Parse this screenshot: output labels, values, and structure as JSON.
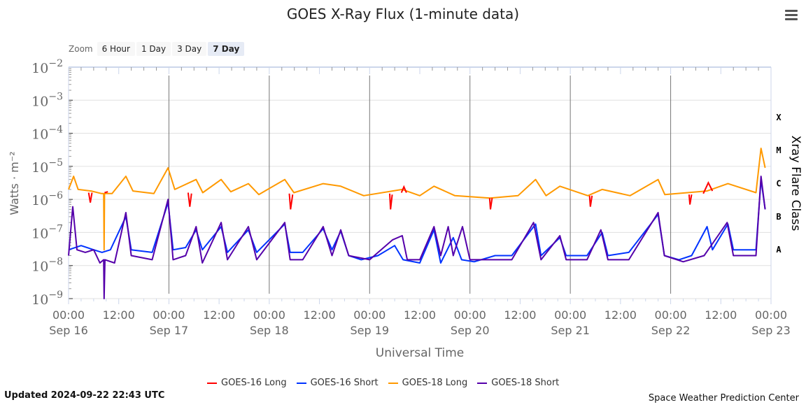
{
  "chart_data": {
    "type": "line",
    "title": "GOES X-Ray Flux (1-minute data)",
    "xlabel": "Universal Time",
    "ylabel": "Watts · m⁻²",
    "y2label": "Xray Flare Class",
    "yscale": "log",
    "ylim": [
      1e-09,
      0.01
    ],
    "xlim_hours": [
      0,
      168
    ],
    "y_ticks": [
      {
        "base": "10",
        "exp": "−2"
      },
      {
        "base": "10",
        "exp": "−3"
      },
      {
        "base": "10",
        "exp": "−4"
      },
      {
        "base": "10",
        "exp": "−5"
      },
      {
        "base": "10",
        "exp": "−6"
      },
      {
        "base": "10",
        "exp": "−7"
      },
      {
        "base": "10",
        "exp": "−8"
      },
      {
        "base": "10",
        "exp": "−9"
      }
    ],
    "flare_classes": [
      {
        "label": "X",
        "value": 0.000316
      },
      {
        "label": "M",
        "value": 3.16e-05
      },
      {
        "label": "C",
        "value": 3.16e-06
      },
      {
        "label": "B",
        "value": 3.16e-07
      },
      {
        "label": "A",
        "value": 3.16e-08
      }
    ],
    "x_ticks": [
      {
        "h": 0,
        "time": "00:00",
        "date": "Sep 16"
      },
      {
        "h": 12,
        "time": "12:00",
        "date": ""
      },
      {
        "h": 24,
        "time": "00:00",
        "date": "Sep 17"
      },
      {
        "h": 36,
        "time": "12:00",
        "date": ""
      },
      {
        "h": 48,
        "time": "00:00",
        "date": "Sep 18"
      },
      {
        "h": 60,
        "time": "12:00",
        "date": ""
      },
      {
        "h": 72,
        "time": "00:00",
        "date": "Sep 19"
      },
      {
        "h": 84,
        "time": "12:00",
        "date": ""
      },
      {
        "h": 96,
        "time": "00:00",
        "date": "Sep 20"
      },
      {
        "h": 108,
        "time": "12:00",
        "date": ""
      },
      {
        "h": 120,
        "time": "00:00",
        "date": "Sep 21"
      },
      {
        "h": 132,
        "time": "12:00",
        "date": ""
      },
      {
        "h": 144,
        "time": "00:00",
        "date": "Sep 22"
      },
      {
        "h": 156,
        "time": "12:00",
        "date": ""
      },
      {
        "h": 168,
        "time": "00:00",
        "date": "Sep 23"
      }
    ],
    "series": [
      {
        "name": "GOES-16 Long",
        "color": "#ff0000",
        "segments": [
          [
            [
              4.8,
              1.6e-06
            ],
            [
              5.2,
              8e-07
            ],
            [
              5.6,
              1.6e-06
            ]
          ],
          [
            [
              8.6,
              1.6e-06
            ],
            [
              9.4,
              1.7e-06
            ]
          ],
          [
            [
              28.6,
              1.6e-06
            ],
            [
              29.0,
              6e-07
            ],
            [
              29.4,
              1.5e-06
            ]
          ],
          [
            [
              52.8,
              1.5e-06
            ],
            [
              53.1,
              5e-07
            ],
            [
              53.6,
              1.4e-06
            ]
          ],
          [
            [
              76.8,
              1.5e-06
            ],
            [
              77.0,
              5e-07
            ],
            [
              77.4,
              1.4e-06
            ]
          ],
          [
            [
              79.6,
              1.6e-06
            ],
            [
              80.2,
              2.4e-06
            ],
            [
              80.8,
              1.6e-06
            ]
          ],
          [
            [
              100.7,
              1.1e-06
            ],
            [
              100.9,
              5e-07
            ],
            [
              101.3,
              1.1e-06
            ]
          ],
          [
            [
              124.6,
              1.3e-06
            ],
            [
              124.8,
              6e-07
            ],
            [
              125.2,
              1.3e-06
            ]
          ],
          [
            [
              148.4,
              1.4e-06
            ],
            [
              148.6,
              7e-07
            ],
            [
              149.0,
              1.4e-06
            ]
          ],
          [
            [
              151.8,
              1.5e-06
            ],
            [
              153.0,
              3.2e-06
            ],
            [
              154.0,
              1.8e-06
            ]
          ]
        ]
      },
      {
        "name": "GOES-16 Short",
        "color": "#0033ff",
        "points": [
          [
            0,
            3e-08
          ],
          [
            3,
            4e-08
          ],
          [
            6,
            3e-08
          ],
          [
            8,
            2.5e-08
          ],
          [
            10,
            3e-08
          ],
          [
            13.7,
            3e-07
          ],
          [
            15,
            3e-08
          ],
          [
            20,
            2.5e-08
          ],
          [
            23.8,
            8e-07
          ],
          [
            25,
            3e-08
          ],
          [
            28,
            3.5e-08
          ],
          [
            30.5,
            1.2e-07
          ],
          [
            32,
            3e-08
          ],
          [
            36.5,
            1.5e-07
          ],
          [
            38,
            2.5e-08
          ],
          [
            43,
            1.2e-07
          ],
          [
            45,
            2.5e-08
          ],
          [
            51.7,
            1.8e-07
          ],
          [
            53,
            2.5e-08
          ],
          [
            56,
            2.5e-08
          ],
          [
            60.9,
            1.3e-07
          ],
          [
            63,
            3e-08
          ],
          [
            65.1,
            1.1e-07
          ],
          [
            67,
            2e-08
          ],
          [
            70,
            1.5e-08
          ],
          [
            74,
            2e-08
          ],
          [
            78,
            4e-08
          ],
          [
            80,
            1.5e-08
          ],
          [
            84,
            1.2e-08
          ],
          [
            87.4,
            1.2e-07
          ],
          [
            89,
            1.2e-08
          ],
          [
            92,
            7e-08
          ],
          [
            94,
            1.5e-08
          ],
          [
            97,
            1.3e-08
          ],
          [
            102,
            2e-08
          ],
          [
            106,
            2e-08
          ],
          [
            111.7,
            1.8e-07
          ],
          [
            113,
            2e-08
          ],
          [
            117.5,
            7e-08
          ],
          [
            119,
            2e-08
          ],
          [
            124,
            2e-08
          ],
          [
            127.6,
            1e-07
          ],
          [
            129,
            2e-08
          ],
          [
            134,
            2.5e-08
          ],
          [
            141,
            3.5e-07
          ],
          [
            142.5,
            2e-08
          ],
          [
            146,
            1.5e-08
          ],
          [
            149,
            2e-08
          ],
          [
            152.7,
            1.5e-07
          ],
          [
            154,
            3e-08
          ],
          [
            157.7,
            1.8e-07
          ],
          [
            159,
            3e-08
          ],
          [
            164.4,
            3e-08
          ],
          [
            165.6,
            4e-06
          ],
          [
            166.6,
            5e-07
          ]
        ]
      },
      {
        "name": "GOES-18 Long",
        "color": "#ff9900",
        "points": [
          [
            0,
            2e-06
          ],
          [
            1.2,
            5e-06
          ],
          [
            2.3,
            2e-06
          ],
          [
            5.4,
            1.8e-06
          ],
          [
            7.9,
            1.5e-06
          ],
          [
            8.4,
            1.5e-06
          ],
          [
            8.5,
            3e-08
          ],
          [
            8.6,
            1.5e-06
          ],
          [
            10.4,
            1.5e-06
          ],
          [
            13.7,
            5e-06
          ],
          [
            15.4,
            1.8e-06
          ],
          [
            20.4,
            1.5e-06
          ],
          [
            23.8,
            9e-06
          ],
          [
            25.4,
            2e-06
          ],
          [
            30.5,
            4e-06
          ],
          [
            32.1,
            1.6e-06
          ],
          [
            36.5,
            4e-06
          ],
          [
            38.8,
            1.7e-06
          ],
          [
            43,
            3e-06
          ],
          [
            45.5,
            1.4e-06
          ],
          [
            51.7,
            4e-06
          ],
          [
            53.9,
            1.6e-06
          ],
          [
            60.9,
            3e-06
          ],
          [
            65.1,
            2.5e-06
          ],
          [
            70.6,
            1.3e-06
          ],
          [
            79.8,
            2e-06
          ],
          [
            84,
            1.3e-06
          ],
          [
            87.4,
            2.5e-06
          ],
          [
            92.4,
            1.3e-06
          ],
          [
            100.8,
            1.1e-06
          ],
          [
            107.5,
            1.3e-06
          ],
          [
            111.7,
            4e-06
          ],
          [
            114.2,
            1.3e-06
          ],
          [
            117.5,
            2.5e-06
          ],
          [
            124.2,
            1.3e-06
          ],
          [
            127.6,
            2e-06
          ],
          [
            134.3,
            1.3e-06
          ],
          [
            141,
            4e-06
          ],
          [
            142.6,
            1.4e-06
          ],
          [
            152.7,
            1.8e-06
          ],
          [
            157.7,
            3e-06
          ],
          [
            164.4,
            1.6e-06
          ],
          [
            165.6,
            3.5e-05
          ],
          [
            166.6,
            9e-06
          ]
        ]
      },
      {
        "name": "GOES-18 Short",
        "color": "#5500aa",
        "points": [
          [
            0,
            2e-08
          ],
          [
            1,
            6e-07
          ],
          [
            2,
            3e-08
          ],
          [
            4,
            2.5e-08
          ],
          [
            6,
            3e-08
          ],
          [
            7.5,
            1.2e-08
          ],
          [
            8.4,
            1.5e-08
          ],
          [
            8.5,
            1e-09
          ],
          [
            8.7,
            1.5e-08
          ],
          [
            11,
            1.2e-08
          ],
          [
            13.7,
            4e-07
          ],
          [
            15,
            2e-08
          ],
          [
            20,
            1.5e-08
          ],
          [
            23.8,
            1e-06
          ],
          [
            25,
            1.5e-08
          ],
          [
            28,
            2e-08
          ],
          [
            30.5,
            1.5e-07
          ],
          [
            32,
            1.2e-08
          ],
          [
            36.5,
            2e-07
          ],
          [
            38,
            1.5e-08
          ],
          [
            43,
            1.5e-07
          ],
          [
            45,
            1.5e-08
          ],
          [
            51.7,
            2e-07
          ],
          [
            53,
            1.5e-08
          ],
          [
            56,
            1.5e-08
          ],
          [
            60.9,
            1.5e-07
          ],
          [
            63,
            2e-08
          ],
          [
            65.1,
            1.2e-07
          ],
          [
            67,
            2e-08
          ],
          [
            72,
            1.5e-08
          ],
          [
            77.5,
            6e-08
          ],
          [
            79.8,
            8e-08
          ],
          [
            81,
            1.5e-08
          ],
          [
            84,
            1.5e-08
          ],
          [
            87.4,
            1.5e-07
          ],
          [
            89,
            2e-08
          ],
          [
            90.8,
            1.5e-07
          ],
          [
            92,
            2e-08
          ],
          [
            94.2,
            1.5e-07
          ],
          [
            96,
            1.5e-08
          ],
          [
            102,
            1.5e-08
          ],
          [
            106,
            1.5e-08
          ],
          [
            111.2,
            2e-07
          ],
          [
            113,
            1.5e-08
          ],
          [
            117.5,
            8e-08
          ],
          [
            119,
            1.5e-08
          ],
          [
            124,
            1.5e-08
          ],
          [
            127.3,
            1.2e-07
          ],
          [
            129,
            1.5e-08
          ],
          [
            134,
            1.5e-08
          ],
          [
            141,
            4e-07
          ],
          [
            142.5,
            2e-08
          ],
          [
            147,
            1.3e-08
          ],
          [
            152,
            2e-08
          ],
          [
            157.5,
            2e-07
          ],
          [
            159,
            2e-08
          ],
          [
            164.4,
            2e-08
          ],
          [
            165.6,
            5e-06
          ],
          [
            166.6,
            5e-07
          ]
        ]
      }
    ],
    "legend_position": "bottom"
  },
  "zoom": {
    "label": "Zoom",
    "buttons": [
      "6 Hour",
      "1 Day",
      "3 Day",
      "7 Day"
    ],
    "selected": "7 Day"
  },
  "legend": [
    "GOES-16 Long",
    "GOES-16 Short",
    "GOES-18 Long",
    "GOES-18 Short"
  ],
  "footer": {
    "updated": "Updated 2024-09-22 22:43 UTC",
    "credit": "Space Weather Prediction Center"
  }
}
